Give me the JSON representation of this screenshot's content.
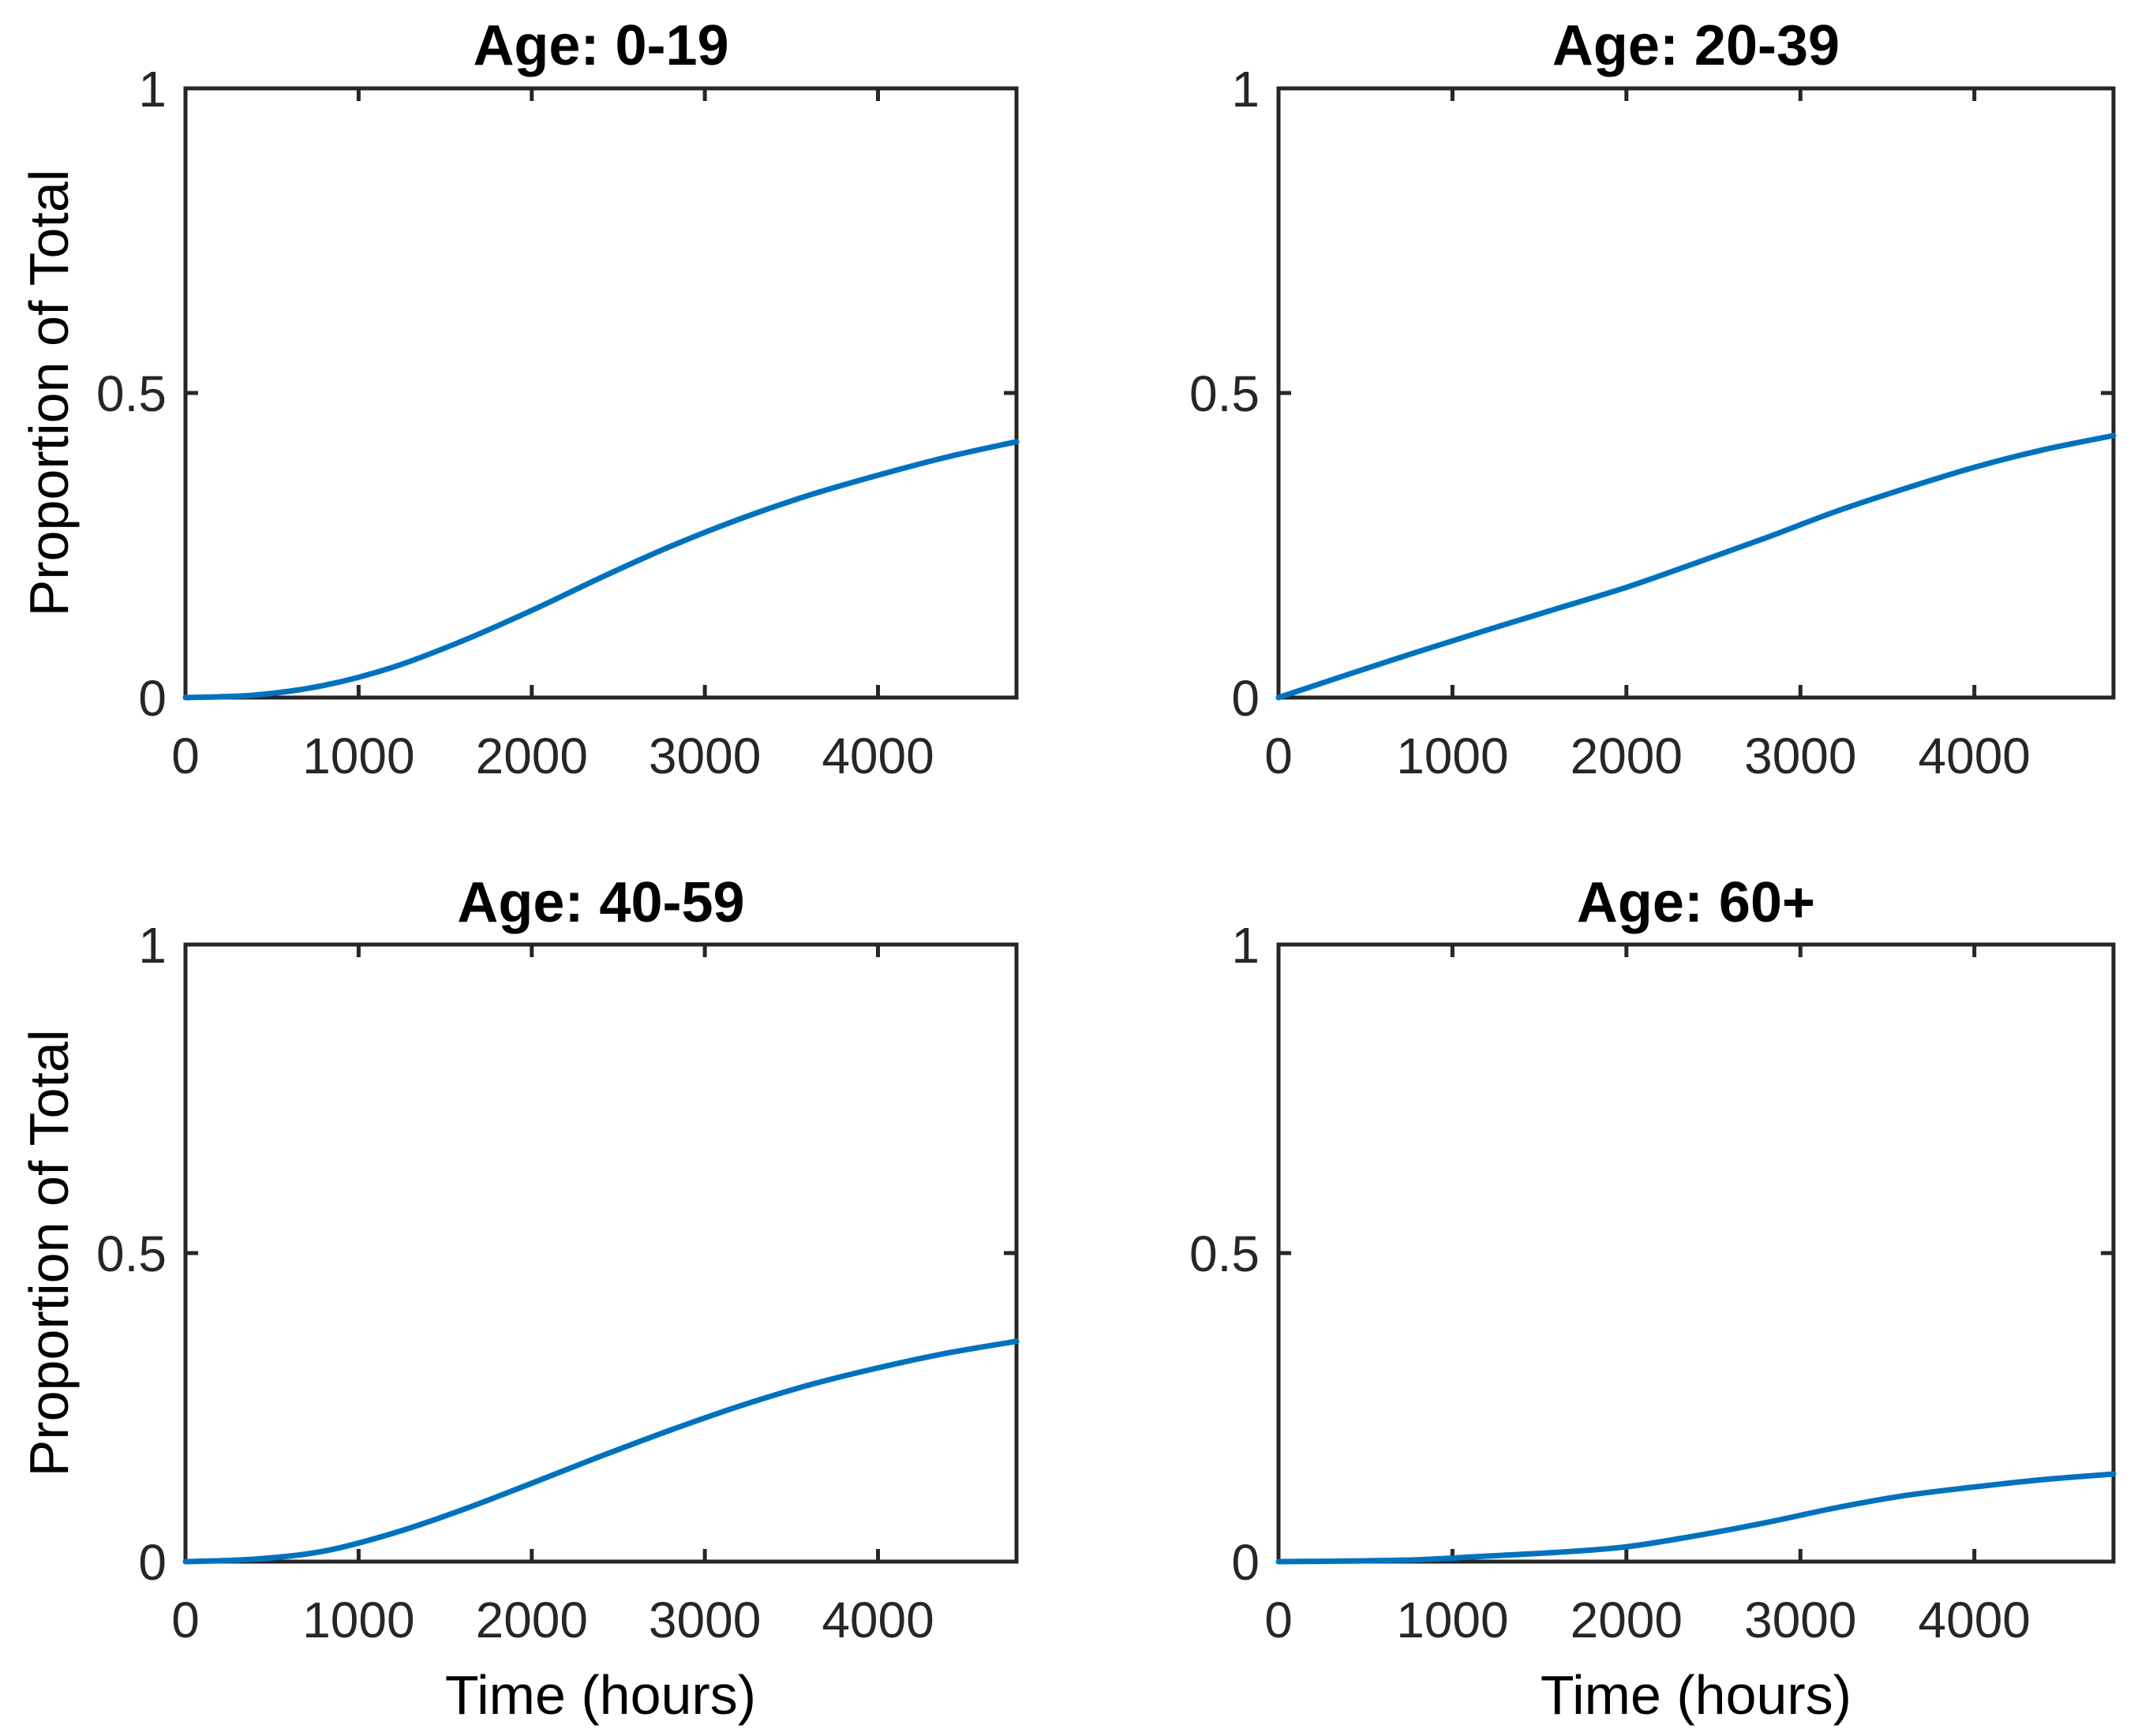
{
  "figure": {
    "background": "#ffffff",
    "line_color": "#0072BD",
    "axis_color": "#262626",
    "title_color": "#000000"
  },
  "chart_data": [
    {
      "type": "line",
      "title": "Age: 0-19",
      "xlabel": "",
      "ylabel": "Proportion of Total",
      "xlim": [
        0,
        4800
      ],
      "ylim": [
        0,
        1
      ],
      "xticks": [
        0,
        1000,
        2000,
        3000,
        4000
      ],
      "yticks": [
        0,
        0.5,
        1
      ],
      "grid": false,
      "legend": null,
      "x": [
        0,
        400,
        800,
        1200,
        1600,
        2000,
        2400,
        2800,
        3200,
        3600,
        4000,
        4400,
        4800
      ],
      "y": [
        0,
        0.004,
        0.02,
        0.05,
        0.093,
        0.143,
        0.197,
        0.248,
        0.293,
        0.332,
        0.365,
        0.395,
        0.42
      ]
    },
    {
      "type": "line",
      "title": "Age: 20-39",
      "xlabel": "",
      "ylabel": "",
      "xlim": [
        0,
        4800
      ],
      "ylim": [
        0,
        1
      ],
      "xticks": [
        0,
        1000,
        2000,
        3000,
        4000
      ],
      "yticks": [
        0,
        0.5,
        1
      ],
      "grid": false,
      "legend": null,
      "x": [
        0,
        400,
        800,
        1200,
        1600,
        2000,
        2400,
        2800,
        3200,
        3600,
        4000,
        4400,
        4800
      ],
      "y": [
        0,
        0.038,
        0.075,
        0.111,
        0.146,
        0.181,
        0.221,
        0.262,
        0.305,
        0.343,
        0.378,
        0.407,
        0.43
      ]
    },
    {
      "type": "line",
      "title": "Age: 40-59",
      "xlabel": "Time (hours)",
      "ylabel": "Proportion of Total",
      "xlim": [
        0,
        4800
      ],
      "ylim": [
        0,
        1
      ],
      "xticks": [
        0,
        1000,
        2000,
        3000,
        4000
      ],
      "yticks": [
        0,
        0.5,
        1
      ],
      "grid": false,
      "legend": null,
      "x": [
        0,
        400,
        800,
        1200,
        1600,
        2000,
        2400,
        2800,
        3200,
        3600,
        4000,
        4400,
        4800
      ],
      "y": [
        0,
        0.004,
        0.017,
        0.046,
        0.084,
        0.127,
        0.171,
        0.213,
        0.252,
        0.286,
        0.314,
        0.338,
        0.357
      ]
    },
    {
      "type": "line",
      "title": "Age: 60+",
      "xlabel": "Time (hours)",
      "ylabel": "",
      "xlim": [
        0,
        4800
      ],
      "ylim": [
        0,
        1
      ],
      "xticks": [
        0,
        1000,
        2000,
        3000,
        4000
      ],
      "yticks": [
        0,
        0.5,
        1
      ],
      "grid": false,
      "legend": null,
      "x": [
        0,
        400,
        800,
        1200,
        1600,
        2000,
        2400,
        2800,
        3200,
        3600,
        4000,
        4400,
        4800
      ],
      "y": [
        0,
        0.001,
        0.003,
        0.009,
        0.015,
        0.024,
        0.042,
        0.063,
        0.087,
        0.107,
        0.121,
        0.133,
        0.142
      ]
    }
  ]
}
